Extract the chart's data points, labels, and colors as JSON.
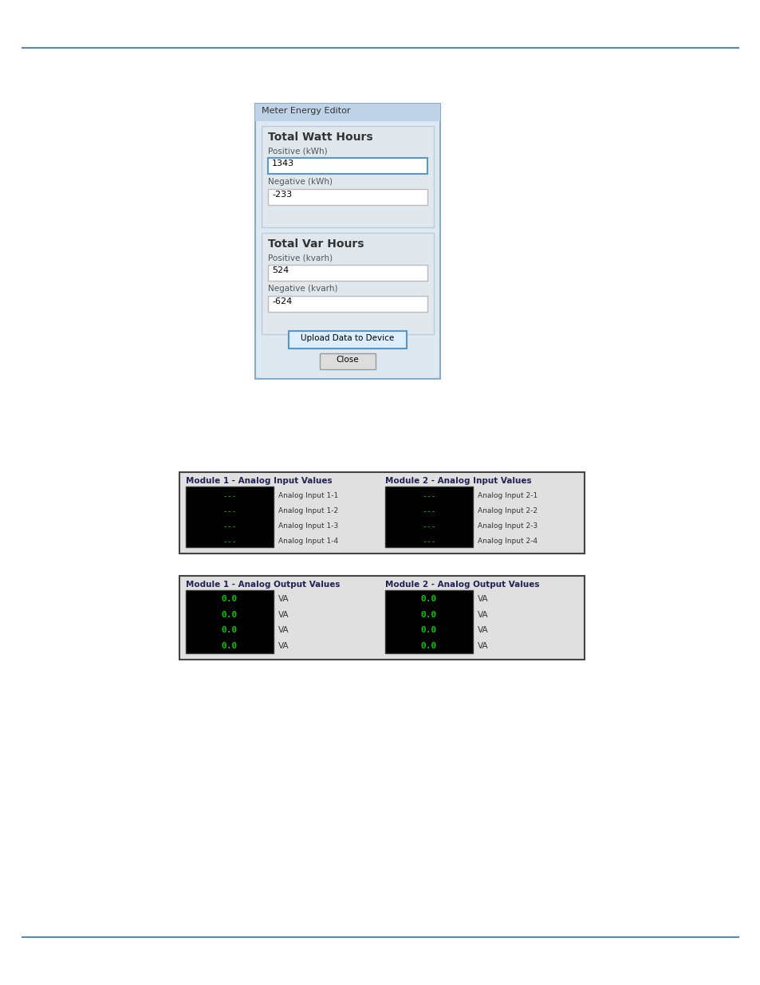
{
  "bg_color": "#ffffff",
  "line_color": "#5588bb",
  "dialog": {
    "title": "Meter Energy Editor",
    "title_bar_color": "#bed3e8",
    "body_bg": "#dde8f0",
    "border_color": "#8aaac8",
    "inner_bg": "#e8edf2",
    "section_bg": "#e0e8ee",
    "section_border": "#bbccdd",
    "field_bg": "#ffffff",
    "field_border_active": "#5599cc",
    "field_border": "#bbbbbb",
    "text_dark": "#222222",
    "text_label": "#444444",
    "section1_title": "Total Watt Hours",
    "section2_title": "Total Var Hours",
    "pos_kwh_label": "Positive (kWh)",
    "neg_kwh_label": "Negative (kWh)",
    "pos_kvarh_label": "Positive (kvarh)",
    "neg_kvarh_label": "Negative (kvarh)",
    "pos_kwh_val": "1343",
    "neg_kwh_val": "-233",
    "pos_kvarh_val": "524",
    "neg_kvarh_val": "-624",
    "btn_upload": "Upload Data to Device",
    "btn_close": "Close",
    "btn_upload_bg": "#ddeeff",
    "btn_upload_border": "#5599cc",
    "btn_close_bg": "#dddddd",
    "btn_close_border": "#999999"
  },
  "analog_input": {
    "mod1_title": "Module 1 - Analog Input Values",
    "mod2_title": "Module 2 - Analog Input Values",
    "display_bg": "#000000",
    "panel_bg": "#e0e0e0",
    "panel_border": "#444444",
    "dash_color": "#00cc00",
    "dash_text": "---",
    "title_color": "#222255",
    "label_color": "#333333",
    "labels1": [
      "Analog Input 1-1",
      "Analog Input 1-2",
      "Analog Input 1-3",
      "Analog Input 1-4"
    ],
    "labels2": [
      "Analog Input 2-1",
      "Analog Input 2-2",
      "Analog Input 2-3",
      "Analog Input 2-4"
    ]
  },
  "analog_output": {
    "mod1_title": "Module 1 - Analog Output Values",
    "mod2_title": "Module 2 - Analog Output Values",
    "display_bg": "#000000",
    "panel_bg": "#e0e0e0",
    "panel_border": "#444444",
    "val_color": "#00cc00",
    "val_text": "0.0",
    "unit": "VA",
    "title_color": "#222255",
    "label_color": "#333333",
    "rows": 4
  }
}
